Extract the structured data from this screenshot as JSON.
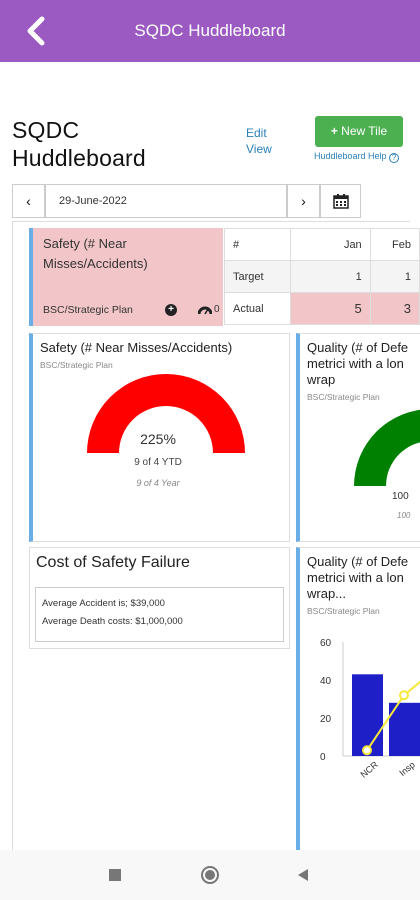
{
  "header": {
    "title": "SQDC Huddleboard"
  },
  "page": {
    "title_line1": "SQDC",
    "title_line2": "Huddleboard",
    "edit_view": "Edit View",
    "new_tile": "New Tile",
    "help": "Huddleboard Help"
  },
  "date_bar": {
    "date": "29-June-2022"
  },
  "summary_strip": {
    "title": "Safety (# Near Misses/Accidents)",
    "bsc": "BSC/Strategic Plan",
    "gauge_count": "0",
    "table": {
      "corner": "#",
      "months": [
        "Jan",
        "Feb"
      ],
      "rows": [
        {
          "label": "Target",
          "values": [
            "1",
            "1"
          ]
        },
        {
          "label": "Actual",
          "values": [
            "5",
            "3"
          ]
        }
      ]
    }
  },
  "tiles": {
    "safety": {
      "title": "Safety (# Near Misses/Accidents)",
      "bsc": "BSC/Strategic Plan",
      "percent": "225%",
      "ytd": "9 of 4 YTD",
      "year": "9 of 4 Year",
      "gauge_fraction": 1.0,
      "gauge_color": "#ff0000"
    },
    "quality1": {
      "title_lines": [
        "Quality (# of Defe",
        "metrici with a lon",
        "wrap"
      ],
      "bsc": "BSC/Strategic Plan",
      "value": "100",
      "value2": "100",
      "gauge_color": "#008000"
    },
    "cost": {
      "title": "Cost of Safety Failure",
      "line1": "Average Accident is; $39,000",
      "line2": "Average Death costs: $1,000,000"
    },
    "quality2": {
      "title_lines": [
        "Quality (# of Defe",
        "metrici with a lon",
        "wrap..."
      ],
      "bsc": "BSC/Strategic Plan"
    }
  },
  "chart_data": {
    "type": "bar",
    "categories": [
      "NCR",
      "Insp"
    ],
    "ylim": [
      0,
      60
    ],
    "yticks": [
      "0",
      "20",
      "40",
      "60"
    ],
    "series": [
      {
        "type": "bar",
        "values": [
          43,
          28
        ],
        "color": "#1f1fc8"
      },
      {
        "type": "line",
        "values": [
          3,
          32
        ],
        "color": "#f5e83a"
      }
    ]
  },
  "colors": {
    "appbar": "#9b59c2",
    "accent_blue": "#6aaee8",
    "pink": "#f2c6c8",
    "green_button": "#4caf50",
    "link": "#2a80b9"
  },
  "icons": [
    "back-icon",
    "plus-icon",
    "help-icon",
    "chevron-left-icon",
    "chevron-right-icon",
    "calendar-icon",
    "plus-circle-icon",
    "gauge-icon",
    "nav-square-icon",
    "nav-circle-icon",
    "nav-triangle-icon"
  ]
}
